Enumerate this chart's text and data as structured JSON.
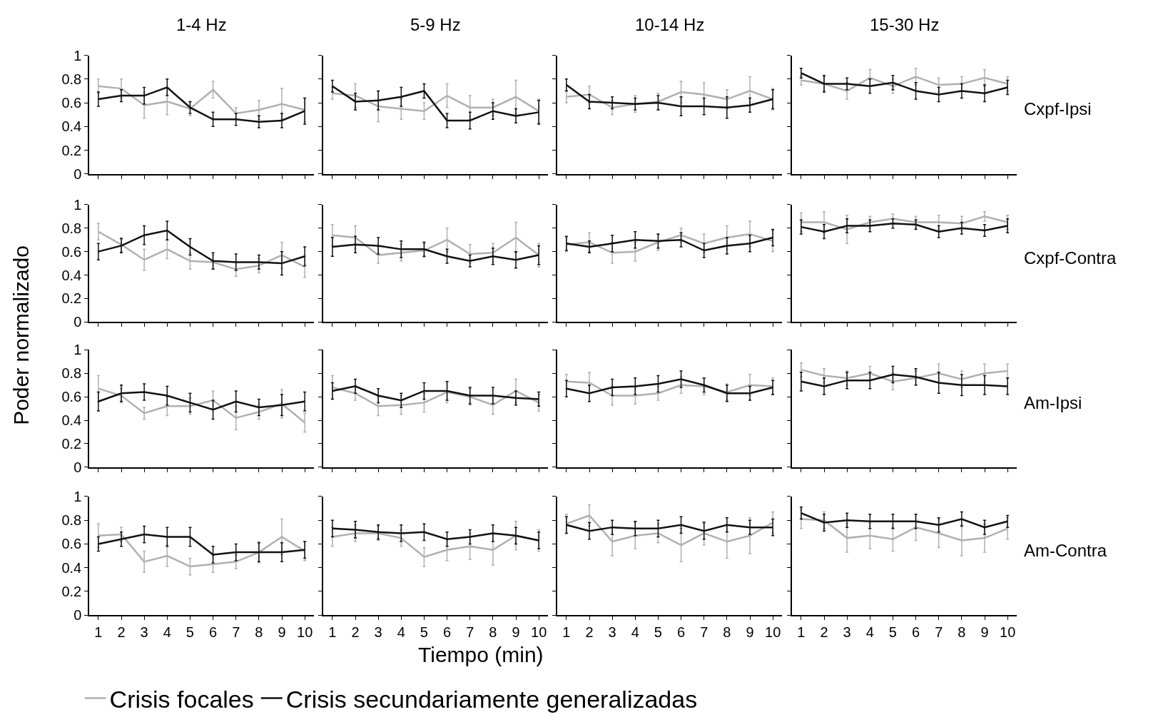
{
  "chart_data": [
    {
      "type": "line",
      "title": "1-4 Hz",
      "ylabel": "Poder normalizado",
      "legend": "bottom",
      "tick_labels": "y",
      "x": [
        1,
        2,
        3,
        4,
        5,
        6,
        7,
        8,
        9,
        10
      ],
      "xlim": [
        0.6,
        10.4
      ],
      "xticks": [
        1,
        2,
        3,
        4,
        5,
        6,
        7,
        8,
        9,
        10
      ],
      "ylim": [
        0,
        1
      ],
      "yticks": [
        0,
        0.2,
        0.4,
        0.6,
        0.8,
        1
      ],
      "grid": false,
      "series": [
        {
          "name": "Crisis focales",
          "color": "#b0b0b0",
          "values": [
            0.74,
            0.72,
            0.58,
            0.61,
            0.55,
            0.71,
            0.51,
            0.54,
            0.59,
            0.54
          ],
          "errors": [
            0.06,
            0.08,
            0.11,
            0.11,
            0.06,
            0.07,
            0.05,
            0.08,
            0.13,
            0.1
          ]
        },
        {
          "name": "Crisis secundariamente generalizadas",
          "color": "#111111",
          "values": [
            0.63,
            0.66,
            0.66,
            0.73,
            0.56,
            0.46,
            0.46,
            0.44,
            0.45,
            0.53
          ],
          "errors": [
            0.06,
            0.05,
            0.07,
            0.07,
            0.05,
            0.06,
            0.05,
            0.05,
            0.06,
            0.11
          ]
        }
      ]
    },
    {
      "type": "line",
      "title": "5-9 Hz",
      "tick_labels": false,
      "x": [
        1,
        2,
        3,
        4,
        5,
        6,
        7,
        8,
        9,
        10
      ],
      "xlim": [
        0.6,
        10.4
      ],
      "xticks": [
        1,
        2,
        3,
        4,
        5,
        6,
        7,
        8,
        9,
        10
      ],
      "ylim": [
        0,
        1
      ],
      "yticks": [
        0,
        0.2,
        0.4,
        0.6,
        0.8,
        1
      ],
      "grid": false,
      "series": [
        {
          "color": "#b0b0b0",
          "values": [
            0.68,
            0.66,
            0.57,
            0.55,
            0.53,
            0.66,
            0.56,
            0.56,
            0.65,
            0.53
          ],
          "errors": [
            0.05,
            0.1,
            0.13,
            0.09,
            0.07,
            0.1,
            0.1,
            0.07,
            0.14,
            0.1
          ]
        },
        {
          "color": "#111111",
          "values": [
            0.74,
            0.61,
            0.62,
            0.65,
            0.7,
            0.45,
            0.45,
            0.53,
            0.49,
            0.52
          ],
          "errors": [
            0.05,
            0.07,
            0.08,
            0.08,
            0.06,
            0.06,
            0.07,
            0.07,
            0.06,
            0.1
          ]
        }
      ]
    },
    {
      "type": "line",
      "title": "10-14 Hz",
      "tick_labels": false,
      "x": [
        1,
        2,
        3,
        4,
        5,
        6,
        7,
        8,
        9,
        10
      ],
      "xlim": [
        0.6,
        10.4
      ],
      "xticks": [
        1,
        2,
        3,
        4,
        5,
        6,
        7,
        8,
        9,
        10
      ],
      "ylim": [
        0,
        1
      ],
      "yticks": [
        0,
        0.2,
        0.4,
        0.6,
        0.8,
        1
      ],
      "grid": false,
      "series": [
        {
          "color": "#b0b0b0",
          "values": [
            0.65,
            0.67,
            0.56,
            0.59,
            0.61,
            0.69,
            0.67,
            0.63,
            0.7,
            0.63
          ],
          "errors": [
            0.05,
            0.07,
            0.06,
            0.07,
            0.07,
            0.09,
            0.1,
            0.08,
            0.12,
            0.09
          ]
        },
        {
          "color": "#111111",
          "values": [
            0.75,
            0.61,
            0.6,
            0.59,
            0.6,
            0.57,
            0.57,
            0.56,
            0.58,
            0.63
          ],
          "errors": [
            0.05,
            0.06,
            0.05,
            0.05,
            0.06,
            0.08,
            0.07,
            0.09,
            0.06,
            0.08
          ]
        }
      ]
    },
    {
      "type": "line",
      "title": "15-30 Hz",
      "annotations": [
        "Cxpf-Ipsi"
      ],
      "tick_labels": false,
      "x": [
        1,
        2,
        3,
        4,
        5,
        6,
        7,
        8,
        9,
        10
      ],
      "xlim": [
        0.6,
        10.4
      ],
      "xticks": [
        1,
        2,
        3,
        4,
        5,
        6,
        7,
        8,
        9,
        10
      ],
      "ylim": [
        0,
        1
      ],
      "yticks": [
        0,
        0.2,
        0.4,
        0.6,
        0.8,
        1
      ],
      "grid": false,
      "series": [
        {
          "color": "#b0b0b0",
          "values": [
            0.79,
            0.76,
            0.7,
            0.81,
            0.74,
            0.82,
            0.75,
            0.76,
            0.81,
            0.76
          ],
          "errors": [
            0.04,
            0.06,
            0.07,
            0.07,
            0.06,
            0.07,
            0.06,
            0.06,
            0.07,
            0.06
          ]
        },
        {
          "color": "#111111",
          "values": [
            0.85,
            0.76,
            0.76,
            0.74,
            0.77,
            0.7,
            0.67,
            0.7,
            0.68,
            0.73
          ],
          "errors": [
            0.04,
            0.07,
            0.05,
            0.06,
            0.06,
            0.07,
            0.06,
            0.06,
            0.07,
            0.06
          ]
        }
      ]
    },
    {
      "type": "line",
      "tick_labels": "y",
      "x": [
        1,
        2,
        3,
        4,
        5,
        6,
        7,
        8,
        9,
        10
      ],
      "xlim": [
        0.6,
        10.4
      ],
      "xticks": [
        1,
        2,
        3,
        4,
        5,
        6,
        7,
        8,
        9,
        10
      ],
      "ylim": [
        0,
        1
      ],
      "yticks": [
        0,
        0.2,
        0.4,
        0.6,
        0.8,
        1
      ],
      "grid": false,
      "series": [
        {
          "color": "#b0b0b0",
          "values": [
            0.77,
            0.66,
            0.53,
            0.62,
            0.52,
            0.51,
            0.45,
            0.48,
            0.57,
            0.47
          ],
          "errors": [
            0.07,
            0.06,
            0.09,
            0.08,
            0.07,
            0.06,
            0.06,
            0.06,
            0.11,
            0.09
          ]
        },
        {
          "color": "#111111",
          "values": [
            0.6,
            0.65,
            0.74,
            0.78,
            0.64,
            0.52,
            0.51,
            0.51,
            0.5,
            0.56
          ],
          "errors": [
            0.07,
            0.06,
            0.08,
            0.08,
            0.07,
            0.07,
            0.07,
            0.06,
            0.1,
            0.08
          ]
        }
      ]
    },
    {
      "type": "line",
      "tick_labels": false,
      "x": [
        1,
        2,
        3,
        4,
        5,
        6,
        7,
        8,
        9,
        10
      ],
      "xlim": [
        0.6,
        10.4
      ],
      "xticks": [
        1,
        2,
        3,
        4,
        5,
        6,
        7,
        8,
        9,
        10
      ],
      "ylim": [
        0,
        1
      ],
      "yticks": [
        0,
        0.2,
        0.4,
        0.6,
        0.8,
        1
      ],
      "grid": false,
      "series": [
        {
          "color": "#b0b0b0",
          "values": [
            0.74,
            0.72,
            0.57,
            0.59,
            0.61,
            0.7,
            0.58,
            0.59,
            0.72,
            0.57
          ],
          "errors": [
            0.09,
            0.1,
            0.07,
            0.07,
            0.06,
            0.1,
            0.08,
            0.08,
            0.13,
            0.1
          ]
        },
        {
          "color": "#111111",
          "values": [
            0.64,
            0.66,
            0.65,
            0.62,
            0.62,
            0.56,
            0.52,
            0.56,
            0.53,
            0.57
          ],
          "errors": [
            0.08,
            0.07,
            0.07,
            0.07,
            0.06,
            0.06,
            0.05,
            0.07,
            0.07,
            0.08
          ]
        }
      ]
    },
    {
      "type": "line",
      "tick_labels": false,
      "x": [
        1,
        2,
        3,
        4,
        5,
        6,
        7,
        8,
        9,
        10
      ],
      "xlim": [
        0.6,
        10.4
      ],
      "xticks": [
        1,
        2,
        3,
        4,
        5,
        6,
        7,
        8,
        9,
        10
      ],
      "ylim": [
        0,
        1
      ],
      "yticks": [
        0,
        0.2,
        0.4,
        0.6,
        0.8,
        1
      ],
      "grid": false,
      "series": [
        {
          "color": "#b0b0b0",
          "values": [
            0.66,
            0.68,
            0.59,
            0.6,
            0.68,
            0.74,
            0.67,
            0.72,
            0.75,
            0.69
          ],
          "errors": [
            0.06,
            0.08,
            0.09,
            0.08,
            0.07,
            0.06,
            0.08,
            0.1,
            0.11,
            0.09
          ]
        },
        {
          "color": "#111111",
          "values": [
            0.67,
            0.64,
            0.67,
            0.7,
            0.69,
            0.7,
            0.61,
            0.65,
            0.67,
            0.72
          ],
          "errors": [
            0.06,
            0.05,
            0.07,
            0.07,
            0.06,
            0.06,
            0.06,
            0.07,
            0.07,
            0.07
          ]
        }
      ]
    },
    {
      "type": "line",
      "annotations": [
        "Cxpf-Contra"
      ],
      "tick_labels": false,
      "x": [
        1,
        2,
        3,
        4,
        5,
        6,
        7,
        8,
        9,
        10
      ],
      "xlim": [
        0.6,
        10.4
      ],
      "xticks": [
        1,
        2,
        3,
        4,
        5,
        6,
        7,
        8,
        9,
        10
      ],
      "ylim": [
        0,
        1
      ],
      "yticks": [
        0,
        0.2,
        0.4,
        0.6,
        0.8,
        1
      ],
      "grid": false,
      "series": [
        {
          "color": "#b0b0b0",
          "values": [
            0.85,
            0.85,
            0.79,
            0.85,
            0.88,
            0.85,
            0.85,
            0.84,
            0.9,
            0.85
          ],
          "errors": [
            0.08,
            0.09,
            0.12,
            0.05,
            0.04,
            0.05,
            0.06,
            0.06,
            0.04,
            0.06
          ]
        },
        {
          "color": "#111111",
          "values": [
            0.81,
            0.77,
            0.82,
            0.82,
            0.84,
            0.83,
            0.77,
            0.8,
            0.78,
            0.82
          ],
          "errors": [
            0.06,
            0.06,
            0.06,
            0.05,
            0.04,
            0.04,
            0.05,
            0.05,
            0.05,
            0.06
          ]
        }
      ]
    },
    {
      "type": "line",
      "tick_labels": "y",
      "x": [
        1,
        2,
        3,
        4,
        5,
        6,
        7,
        8,
        9,
        10
      ],
      "xlim": [
        0.6,
        10.4
      ],
      "xticks": [
        1,
        2,
        3,
        4,
        5,
        6,
        7,
        8,
        9,
        10
      ],
      "ylim": [
        0,
        1
      ],
      "yticks": [
        0,
        0.2,
        0.4,
        0.6,
        0.8,
        1
      ],
      "grid": false,
      "series": [
        {
          "color": "#b0b0b0",
          "values": [
            0.67,
            0.61,
            0.46,
            0.52,
            0.52,
            0.57,
            0.42,
            0.47,
            0.54,
            0.38
          ],
          "errors": [
            0.11,
            0.06,
            0.05,
            0.08,
            0.07,
            0.08,
            0.1,
            0.06,
            0.12,
            0.08
          ]
        },
        {
          "color": "#111111",
          "values": [
            0.56,
            0.63,
            0.64,
            0.61,
            0.55,
            0.49,
            0.56,
            0.51,
            0.53,
            0.56
          ],
          "errors": [
            0.08,
            0.07,
            0.07,
            0.08,
            0.08,
            0.08,
            0.09,
            0.07,
            0.09,
            0.08
          ]
        }
      ]
    },
    {
      "type": "line",
      "tick_labels": false,
      "x": [
        1,
        2,
        3,
        4,
        5,
        6,
        7,
        8,
        9,
        10
      ],
      "xlim": [
        0.6,
        10.4
      ],
      "xticks": [
        1,
        2,
        3,
        4,
        5,
        6,
        7,
        8,
        9,
        10
      ],
      "ylim": [
        0,
        1
      ],
      "yticks": [
        0,
        0.2,
        0.4,
        0.6,
        0.8,
        1
      ],
      "grid": false,
      "series": [
        {
          "color": "#b0b0b0",
          "values": [
            0.68,
            0.63,
            0.52,
            0.53,
            0.55,
            0.64,
            0.6,
            0.53,
            0.65,
            0.55
          ],
          "errors": [
            0.1,
            0.06,
            0.08,
            0.08,
            0.08,
            0.09,
            0.07,
            0.08,
            0.1,
            0.07
          ]
        },
        {
          "color": "#111111",
          "values": [
            0.65,
            0.69,
            0.61,
            0.57,
            0.65,
            0.65,
            0.61,
            0.61,
            0.59,
            0.58
          ],
          "errors": [
            0.07,
            0.06,
            0.06,
            0.06,
            0.07,
            0.08,
            0.07,
            0.07,
            0.06,
            0.06
          ]
        }
      ]
    },
    {
      "type": "line",
      "tick_labels": false,
      "x": [
        1,
        2,
        3,
        4,
        5,
        6,
        7,
        8,
        9,
        10
      ],
      "xlim": [
        0.6,
        10.4
      ],
      "xticks": [
        1,
        2,
        3,
        4,
        5,
        6,
        7,
        8,
        9,
        10
      ],
      "ylim": [
        0,
        1
      ],
      "yticks": [
        0,
        0.2,
        0.4,
        0.6,
        0.8,
        1
      ],
      "grid": false,
      "series": [
        {
          "color": "#b0b0b0",
          "values": [
            0.73,
            0.72,
            0.61,
            0.61,
            0.63,
            0.7,
            0.69,
            0.64,
            0.7,
            0.69
          ],
          "errors": [
            0.06,
            0.09,
            0.08,
            0.07,
            0.06,
            0.07,
            0.07,
            0.07,
            0.09,
            0.07
          ]
        },
        {
          "color": "#111111",
          "values": [
            0.67,
            0.63,
            0.68,
            0.69,
            0.71,
            0.75,
            0.7,
            0.63,
            0.63,
            0.68
          ],
          "errors": [
            0.07,
            0.07,
            0.07,
            0.07,
            0.07,
            0.07,
            0.06,
            0.07,
            0.06,
            0.06
          ]
        }
      ]
    },
    {
      "type": "line",
      "annotations": [
        "Am-Ipsi"
      ],
      "tick_labels": false,
      "x": [
        1,
        2,
        3,
        4,
        5,
        6,
        7,
        8,
        9,
        10
      ],
      "xlim": [
        0.6,
        10.4
      ],
      "xticks": [
        1,
        2,
        3,
        4,
        5,
        6,
        7,
        8,
        9,
        10
      ],
      "ylim": [
        0,
        1
      ],
      "yticks": [
        0,
        0.2,
        0.4,
        0.6,
        0.8,
        1
      ],
      "grid": false,
      "series": [
        {
          "color": "#b0b0b0",
          "values": [
            0.83,
            0.78,
            0.76,
            0.8,
            0.73,
            0.76,
            0.8,
            0.75,
            0.8,
            0.82
          ],
          "errors": [
            0.06,
            0.06,
            0.06,
            0.06,
            0.07,
            0.06,
            0.08,
            0.07,
            0.08,
            0.06
          ]
        },
        {
          "color": "#111111",
          "values": [
            0.73,
            0.69,
            0.74,
            0.74,
            0.79,
            0.77,
            0.72,
            0.7,
            0.7,
            0.69
          ],
          "errors": [
            0.08,
            0.07,
            0.07,
            0.07,
            0.07,
            0.07,
            0.09,
            0.09,
            0.08,
            0.07
          ]
        }
      ]
    },
    {
      "type": "line",
      "x": [
        1,
        2,
        3,
        4,
        5,
        6,
        7,
        8,
        9,
        10
      ],
      "xlim": [
        0.6,
        10.4
      ],
      "xticks": [
        1,
        2,
        3,
        4,
        5,
        6,
        7,
        8,
        9,
        10
      ],
      "ylim": [
        0,
        1
      ],
      "yticks": [
        0,
        0.2,
        0.4,
        0.6,
        0.8,
        1
      ],
      "grid": false,
      "series": [
        {
          "color": "#b0b0b0",
          "values": [
            0.67,
            0.68,
            0.45,
            0.5,
            0.41,
            0.43,
            0.45,
            0.53,
            0.66,
            0.54
          ],
          "errors": [
            0.1,
            0.06,
            0.09,
            0.09,
            0.07,
            0.07,
            0.06,
            0.09,
            0.15,
            0.08
          ]
        },
        {
          "color": "#111111",
          "values": [
            0.6,
            0.64,
            0.68,
            0.66,
            0.66,
            0.51,
            0.53,
            0.53,
            0.53,
            0.55
          ],
          "errors": [
            0.06,
            0.06,
            0.07,
            0.08,
            0.08,
            0.07,
            0.07,
            0.08,
            0.08,
            0.07
          ]
        }
      ]
    },
    {
      "type": "line",
      "xlabel": "Tiempo (min)",
      "tick_labels": "x",
      "x": [
        1,
        2,
        3,
        4,
        5,
        6,
        7,
        8,
        9,
        10
      ],
      "xlim": [
        0.6,
        10.4
      ],
      "xticks": [
        1,
        2,
        3,
        4,
        5,
        6,
        7,
        8,
        9,
        10
      ],
      "ylim": [
        0,
        1
      ],
      "yticks": [
        0,
        0.2,
        0.4,
        0.6,
        0.8,
        1
      ],
      "grid": false,
      "series": [
        {
          "color": "#b0b0b0",
          "values": [
            0.66,
            0.69,
            0.69,
            0.65,
            0.49,
            0.55,
            0.58,
            0.55,
            0.67,
            0.63
          ],
          "errors": [
            0.08,
            0.07,
            0.06,
            0.07,
            0.08,
            0.09,
            0.11,
            0.13,
            0.12,
            0.09
          ]
        },
        {
          "color": "#111111",
          "values": [
            0.73,
            0.72,
            0.7,
            0.69,
            0.7,
            0.64,
            0.66,
            0.69,
            0.67,
            0.63
          ],
          "errors": [
            0.07,
            0.07,
            0.06,
            0.07,
            0.07,
            0.06,
            0.06,
            0.07,
            0.07,
            0.07
          ]
        }
      ]
    },
    {
      "type": "line",
      "tick_labels": "x",
      "x": [
        1,
        2,
        3,
        4,
        5,
        6,
        7,
        8,
        9,
        10
      ],
      "xlim": [
        0.6,
        10.4
      ],
      "xticks": [
        1,
        2,
        3,
        4,
        5,
        6,
        7,
        8,
        9,
        10
      ],
      "ylim": [
        0,
        1
      ],
      "yticks": [
        0,
        0.2,
        0.4,
        0.6,
        0.8,
        1
      ],
      "grid": false,
      "series": [
        {
          "color": "#b0b0b0",
          "values": [
            0.77,
            0.84,
            0.62,
            0.67,
            0.69,
            0.59,
            0.69,
            0.62,
            0.67,
            0.78
          ],
          "errors": [
            0.08,
            0.09,
            0.12,
            0.11,
            0.08,
            0.14,
            0.1,
            0.14,
            0.15,
            0.09
          ]
        },
        {
          "color": "#111111",
          "values": [
            0.76,
            0.71,
            0.74,
            0.73,
            0.73,
            0.76,
            0.71,
            0.76,
            0.74,
            0.74
          ],
          "errors": [
            0.07,
            0.07,
            0.06,
            0.06,
            0.07,
            0.07,
            0.07,
            0.06,
            0.06,
            0.07
          ]
        }
      ]
    },
    {
      "type": "line",
      "tick_labels": "x",
      "annotations": [
        "Am-Contra"
      ],
      "x": [
        1,
        2,
        3,
        4,
        5,
        6,
        7,
        8,
        9,
        10
      ],
      "xlim": [
        0.6,
        10.4
      ],
      "xticks": [
        1,
        2,
        3,
        4,
        5,
        6,
        7,
        8,
        9,
        10
      ],
      "ylim": [
        0,
        1
      ],
      "yticks": [
        0,
        0.2,
        0.4,
        0.6,
        0.8,
        1
      ],
      "grid": false,
      "series": [
        {
          "color": "#b0b0b0",
          "values": [
            0.81,
            0.8,
            0.65,
            0.67,
            0.64,
            0.74,
            0.69,
            0.63,
            0.65,
            0.73
          ],
          "errors": [
            0.08,
            0.07,
            0.12,
            0.11,
            0.1,
            0.11,
            0.12,
            0.13,
            0.12,
            0.09
          ]
        },
        {
          "color": "#111111",
          "values": [
            0.86,
            0.78,
            0.8,
            0.79,
            0.79,
            0.79,
            0.76,
            0.81,
            0.74,
            0.79
          ],
          "errors": [
            0.05,
            0.07,
            0.06,
            0.06,
            0.06,
            0.06,
            0.06,
            0.06,
            0.06,
            0.05
          ]
        }
      ]
    }
  ]
}
